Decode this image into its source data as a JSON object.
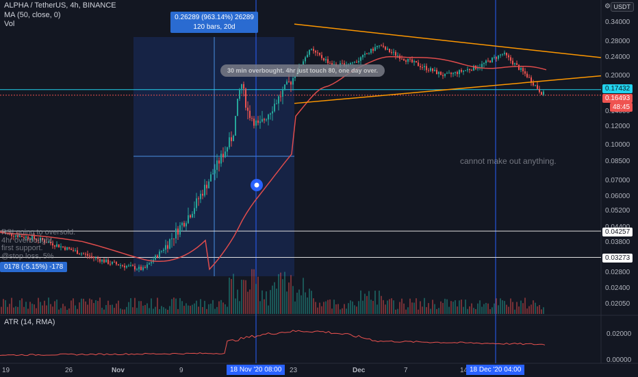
{
  "header": {
    "symbol": "ALPHA / TetherUS, 4h, BINANCE",
    "ma_label": "MA (50, close, 0)",
    "vol_label": "Vol",
    "currency": "USDT"
  },
  "measure_box": {
    "line1": "0.26289 (963.14%) 26289",
    "line2": "120 bars, 20d",
    "bottom_fragment": "0178 (-5.15%) -178"
  },
  "notes": {
    "balloon": "30 min overbought. 4hr just touch 80, one day over.",
    "cannot_make_out": "cannot make out anything.",
    "left_faded": [
      "RSI going to oversold.",
      "4hr overbought.",
      "first support.",
      "@stop loss, 5%"
    ]
  },
  "price_axis": {
    "ticks": [
      "0.34000",
      "0.28000",
      "0.24000",
      "0.20000",
      "0.14000",
      "0.12000",
      "0.10000",
      "0.08500",
      "0.07000",
      "0.06000",
      "0.05200",
      "0.04400",
      "0.03800",
      "0.02800",
      "0.02400",
      "0.02050"
    ],
    "last_price": "0.17432",
    "close_price": "0.16493",
    "countdown": "48:45",
    "hline_1": "0.04257",
    "hline_2": "0.03273"
  },
  "atr": {
    "label": "ATR (14, RMA)",
    "ticks": [
      "0.02000",
      "0.00000"
    ]
  },
  "time_axis": {
    "ticks": [
      "19",
      "26",
      "Nov",
      "9",
      "23",
      "Dec",
      "7",
      "14"
    ],
    "highlight_1": "18 Nov '20   08:00",
    "highlight_2": "18 Dec '20   04:00"
  },
  "colors": {
    "background": "#131722",
    "up": "#26a69a",
    "down": "#ef5350",
    "ma": "#e04c4c",
    "trendline": "#ff9800",
    "measure_fill": "#2962ff",
    "price_line": "#22d3ee",
    "atr_line": "#ef5350"
  },
  "chart_data": {
    "type": "candlestick",
    "scale": "log",
    "ylim": [
      0.0195,
      0.36
    ],
    "title": "",
    "series": [
      {
        "name": "ALPHA / TetherUS",
        "kind": "ohlc",
        "note": "price rises from ~0.030 (early Nov) to ~0.26 (Nov 18-24), consolidates 0.20-0.28 into mid-Dec, drops to 0.165"
      },
      {
        "name": "MA (50, close, 0)",
        "kind": "line"
      },
      {
        "name": "Vol",
        "kind": "bars"
      },
      {
        "name": "ATR (14, RMA)",
        "kind": "line",
        "ylim": [
          0,
          0.025
        ]
      }
    ],
    "trendlines": [
      {
        "from_price": 0.335,
        "to_price": 0.24
      },
      {
        "from_price": 0.152,
        "to_price": 0.2
      }
    ],
    "horizontal_levels": [
      0.04257,
      0.03273
    ],
    "measure": {
      "change": 0.26289,
      "percent": 963.14,
      "bars": 120,
      "days": 20
    }
  }
}
